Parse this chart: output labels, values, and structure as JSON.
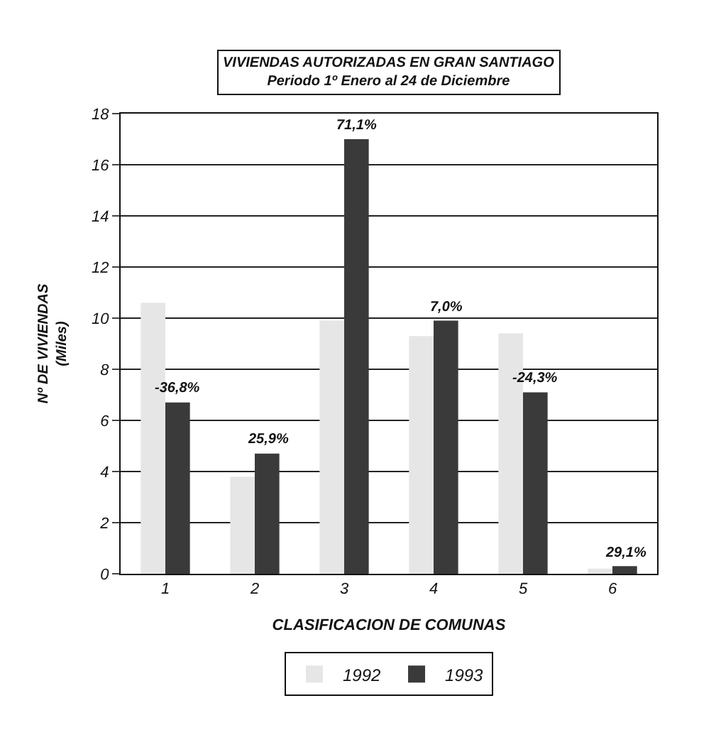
{
  "chart_data": {
    "type": "bar",
    "title": "VIVIENDAS AUTORIZADAS EN GRAN SANTIAGO",
    "subtitle": "Periodo 1º Enero al 24 de Diciembre",
    "xlabel": "CLASIFICACION DE COMUNAS",
    "ylabel": "Nº DE VIVIENDAS\n(Miles)",
    "categories": [
      "1",
      "2",
      "3",
      "4",
      "5",
      "6"
    ],
    "series": [
      {
        "name": "1992",
        "color": "#e6e6e6",
        "values": [
          10.6,
          3.8,
          9.9,
          9.3,
          9.4,
          0.2
        ]
      },
      {
        "name": "1993",
        "color": "#3a3a3a",
        "values": [
          6.7,
          4.7,
          17.0,
          9.9,
          7.1,
          0.3
        ]
      }
    ],
    "annotations": [
      {
        "text": "-36,8%",
        "x": "1",
        "y": 6.7
      },
      {
        "text": "25,9%",
        "x": "2",
        "y": 4.7
      },
      {
        "text": "71,1%",
        "x": "3",
        "y": 17.0
      },
      {
        "text": "7,0%",
        "x": "4",
        "y": 9.9
      },
      {
        "text": "-24,3%",
        "x": "5",
        "y": 7.1
      },
      {
        "text": "29,1%",
        "x": "6",
        "y": 0.3
      }
    ],
    "ylim": [
      0,
      18
    ],
    "yticks": [
      0,
      2,
      4,
      6,
      8,
      10,
      12,
      14,
      16,
      18
    ],
    "grid": "y",
    "legend": "bottom"
  }
}
